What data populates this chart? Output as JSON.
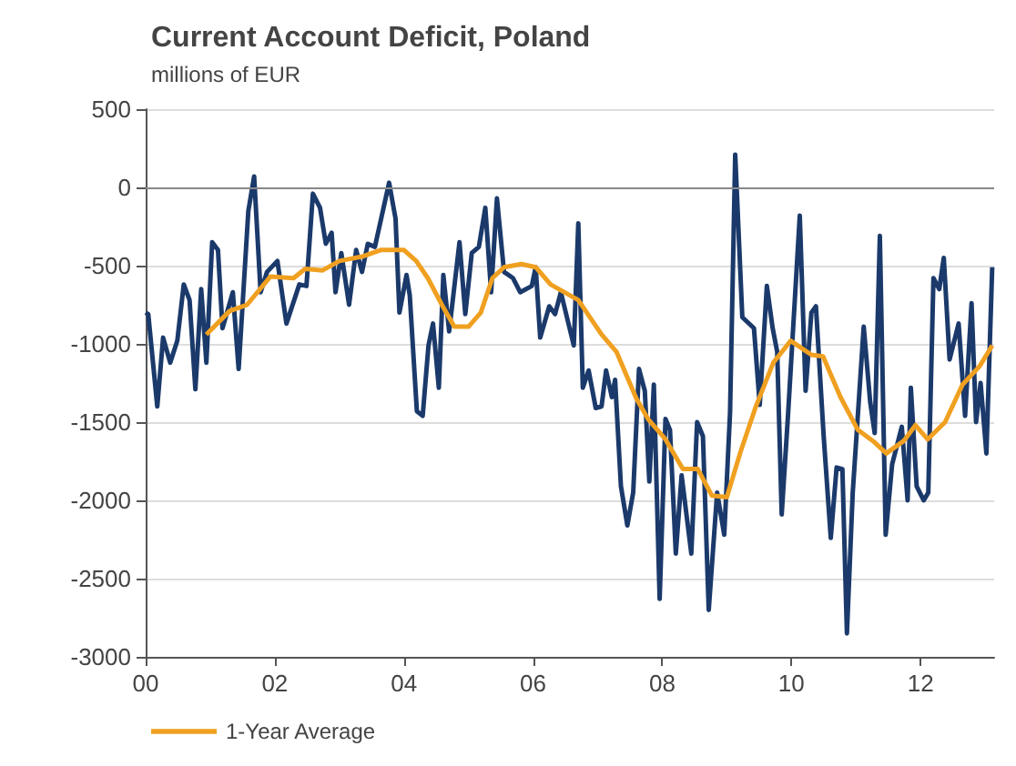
{
  "chart_data": {
    "type": "line",
    "title": "Current Account Deficit, Poland",
    "subtitle": "millions of EUR",
    "xlim": [
      0,
      13.14
    ],
    "xticks": [
      {
        "value": 0,
        "label": "00"
      },
      {
        "value": 2,
        "label": "02"
      },
      {
        "value": 4,
        "label": "04"
      },
      {
        "value": 6,
        "label": "06"
      },
      {
        "value": 8,
        "label": "08"
      },
      {
        "value": 10,
        "label": "10"
      },
      {
        "value": 12,
        "label": "12"
      }
    ],
    "ylim": [
      -3000,
      500
    ],
    "yticks": [
      -3000,
      -2500,
      -2000,
      -1500,
      -1000,
      -500,
      0,
      500
    ],
    "grid": "y",
    "legend": "bottom",
    "marker": "none",
    "line_style": "solid",
    "series": [
      {
        "color": "#1b3a6b",
        "x": [
          0,
          0.04,
          0.18,
          0.27,
          0.38,
          0.49,
          0.59,
          0.68,
          0.77,
          0.86,
          0.94,
          1.03,
          1.12,
          1.19,
          1.35,
          1.44,
          1.59,
          1.68,
          1.78,
          1.88,
          2.04,
          2.18,
          2.38,
          2.49,
          2.59,
          2.7,
          2.79,
          2.88,
          2.94,
          3.03,
          3.15,
          3.26,
          3.35,
          3.44,
          3.55,
          3.77,
          3.87,
          3.93,
          4.04,
          4.09,
          4.2,
          4.29,
          4.38,
          4.45,
          4.54,
          4.61,
          4.7,
          4.86,
          4.95,
          5.05,
          5.16,
          5.26,
          5.35,
          5.44,
          5.55,
          5.69,
          5.8,
          5.98,
          6.04,
          6.11,
          6.25,
          6.34,
          6.43,
          6.63,
          6.7,
          6.77,
          6.86,
          6.97,
          7.06,
          7.13,
          7.22,
          7.27,
          7.36,
          7.46,
          7.55,
          7.64,
          7.73,
          7.8,
          7.87,
          7.96,
          8.05,
          8.12,
          8.21,
          8.3,
          8.45,
          8.54,
          8.63,
          8.72,
          8.85,
          8.96,
          9.05,
          9.13,
          9.24,
          9.42,
          9.51,
          9.62,
          9.71,
          9.78,
          9.85,
          9.95,
          10.13,
          10.22,
          10.31,
          10.38,
          10.5,
          10.61,
          10.7,
          10.79,
          10.86,
          10.95,
          11.12,
          11.22,
          11.29,
          11.37,
          11.46,
          11.56,
          11.71,
          11.8,
          11.85,
          11.94,
          12.05,
          12.12,
          12.2,
          12.29,
          12.36,
          12.45,
          12.59,
          12.69,
          12.79,
          12.86,
          12.93,
          13.02,
          13.11
        ],
        "values": [
          -800,
          -810,
          -1400,
          -960,
          -1120,
          -980,
          -620,
          -720,
          -1290,
          -650,
          -1120,
          -350,
          -400,
          -900,
          -670,
          -1160,
          -150,
          70,
          -670,
          -540,
          -470,
          -870,
          -620,
          -630,
          -40,
          -130,
          -360,
          -290,
          -670,
          -420,
          -750,
          -400,
          -540,
          -360,
          -380,
          30,
          -200,
          -800,
          -560,
          -690,
          -1430,
          -1460,
          -1010,
          -870,
          -1280,
          -560,
          -920,
          -350,
          -810,
          -420,
          -380,
          -130,
          -670,
          -70,
          -540,
          -580,
          -670,
          -630,
          -510,
          -960,
          -760,
          -810,
          -670,
          -1010,
          -230,
          -1280,
          -1170,
          -1410,
          -1400,
          -1170,
          -1340,
          -1230,
          -1910,
          -2160,
          -1950,
          -1160,
          -1300,
          -1880,
          -1260,
          -2630,
          -1480,
          -1550,
          -2340,
          -1840,
          -2340,
          -1500,
          -1590,
          -2700,
          -1950,
          -2220,
          -1440,
          210,
          -830,
          -900,
          -1390,
          -630,
          -900,
          -1050,
          -2090,
          -1440,
          -180,
          -1300,
          -800,
          -760,
          -1590,
          -2240,
          -1790,
          -1800,
          -2850,
          -1950,
          -890,
          -1370,
          -1570,
          -310,
          -2220,
          -1770,
          -1530,
          -2000,
          -1280,
          -1910,
          -2000,
          -1950,
          -580,
          -650,
          -450,
          -1100,
          -870,
          -1460,
          -740,
          -1500,
          -1250,
          -1700,
          -510
        ]
      },
      {
        "name": "1-Year Average",
        "color": "#f0a020",
        "x": [
          0.94,
          1.3,
          1.57,
          1.93,
          2.29,
          2.47,
          2.74,
          3.0,
          3.37,
          3.64,
          4.0,
          4.19,
          4.37,
          4.6,
          4.78,
          5.0,
          5.19,
          5.37,
          5.55,
          5.82,
          6.04,
          6.27,
          6.7,
          7.06,
          7.29,
          7.6,
          7.78,
          8.05,
          8.32,
          8.55,
          8.77,
          9.0,
          9.22,
          9.45,
          9.72,
          9.99,
          10.31,
          10.49,
          10.76,
          11.03,
          11.29,
          11.47,
          11.74,
          11.92,
          12.11,
          12.38,
          12.65,
          12.92,
          13.11
        ],
        "values": [
          -940,
          -790,
          -750,
          -570,
          -580,
          -520,
          -530,
          -470,
          -440,
          -400,
          -400,
          -470,
          -580,
          -760,
          -890,
          -890,
          -800,
          -580,
          -510,
          -490,
          -510,
          -620,
          -720,
          -940,
          -1050,
          -1350,
          -1480,
          -1610,
          -1800,
          -1800,
          -1970,
          -1980,
          -1680,
          -1400,
          -1120,
          -980,
          -1070,
          -1080,
          -1340,
          -1550,
          -1630,
          -1700,
          -1620,
          -1520,
          -1610,
          -1500,
          -1260,
          -1140,
          -1010
        ]
      }
    ]
  }
}
